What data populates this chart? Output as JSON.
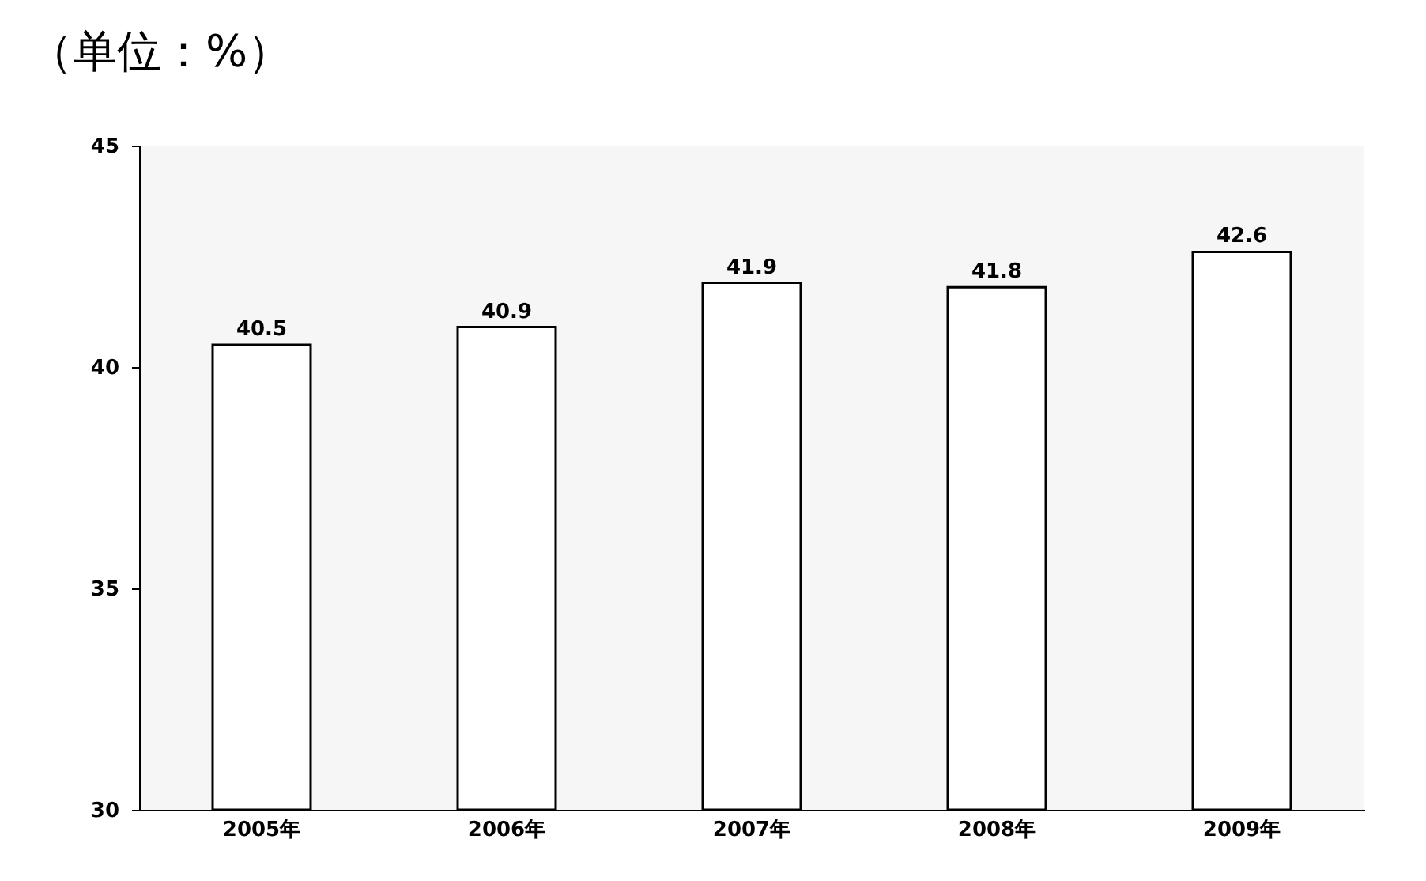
{
  "chart_data": {
    "type": "bar",
    "title": "（单位：%）",
    "categories": [
      "2005年",
      "2006年",
      "2007年",
      "2008年",
      "2009年"
    ],
    "values": [
      40.5,
      40.9,
      41.9,
      41.8,
      42.6
    ],
    "color": "#ffffff",
    "ylim": [
      30,
      45
    ],
    "yticks": [
      30,
      35,
      40,
      45
    ],
    "grid": false,
    "data_labels": true
  }
}
